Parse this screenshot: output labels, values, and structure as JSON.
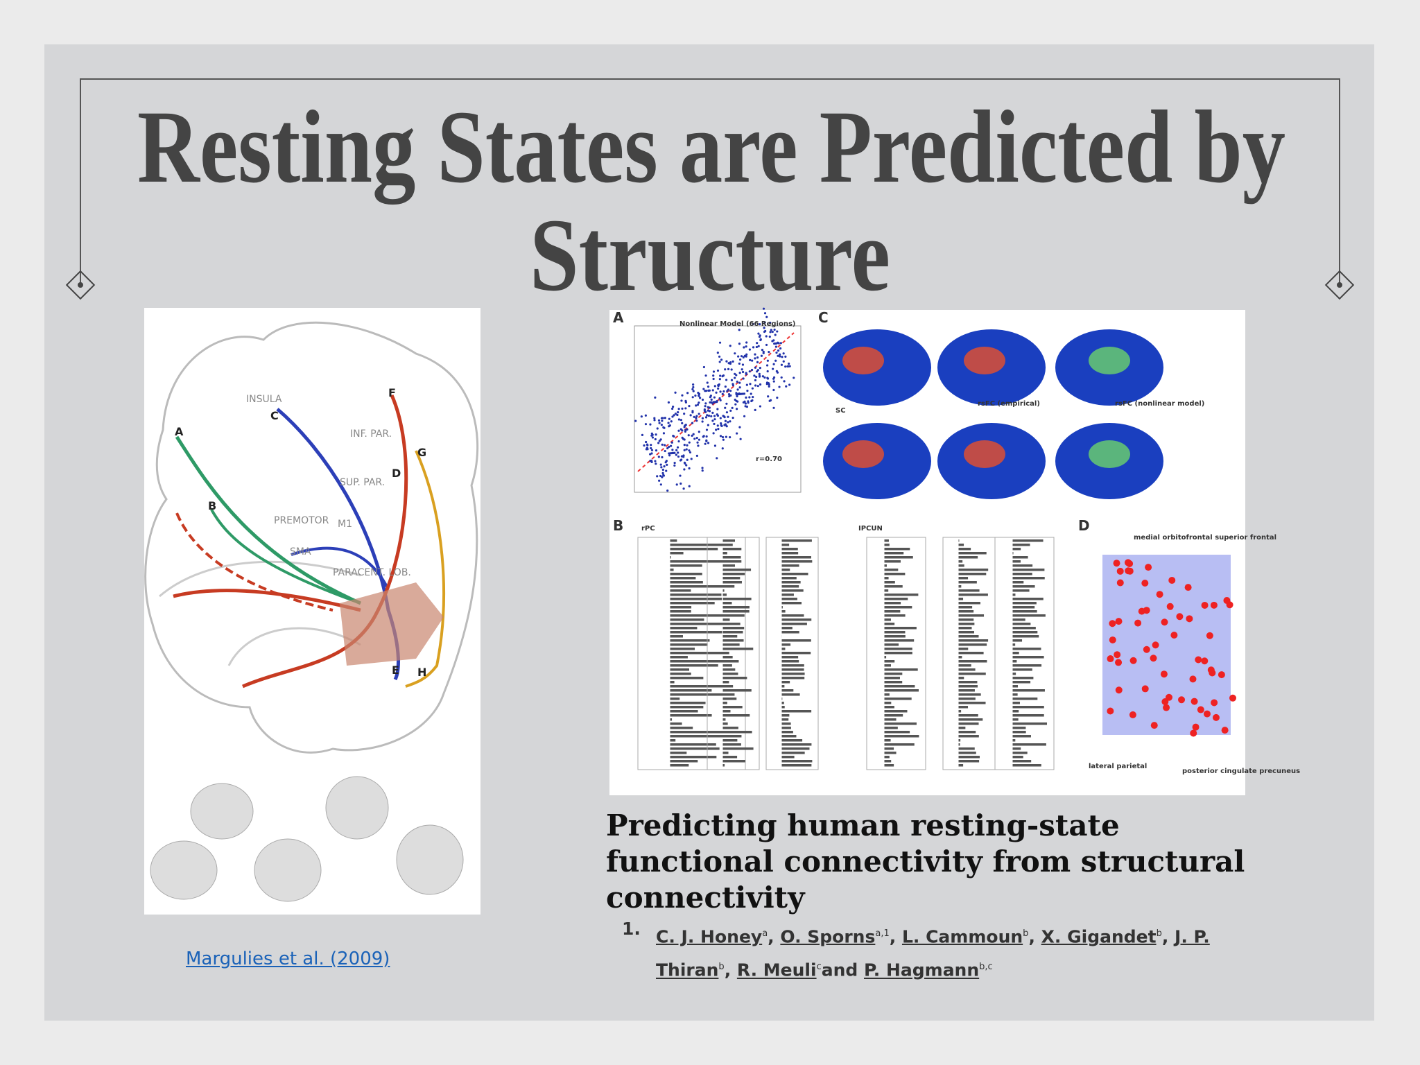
{
  "slide": {
    "title": {
      "line1": "Resting States are Predicted by",
      "line2": "Structure"
    },
    "left_figure": {
      "labels": [
        "INSULA",
        "INF. PAR.",
        "SUP. PAR.",
        "PREMOTOR",
        "M1",
        "SMA",
        "PARACENT. LOB."
      ],
      "letters": [
        "A",
        "B",
        "C",
        "D",
        "E",
        "F",
        "G",
        "H"
      ]
    },
    "right_figure": {
      "panels": [
        "A",
        "B",
        "C",
        "D"
      ],
      "scatter_title": "Nonlinear Model (66 Regions)",
      "scatter_r": "r=0.70",
      "bar_titles": [
        "rPC",
        "IPCUN"
      ],
      "brain_labels": [
        "SC",
        "rsFC (empirical)",
        "rsFC (nonlinear model)"
      ],
      "network_labels": [
        "medial orbitofrontal superior frontal",
        "lateral parietal",
        "posterior cingulate precuneus"
      ]
    },
    "citation": "Margulies et al. (2009)",
    "article": {
      "title_lines": [
        "Predicting human resting-state",
        "functional connectivity from structural",
        "connectivity"
      ],
      "list_number": "1.",
      "authors": [
        {
          "name": "C. J. Honey",
          "sup": "a",
          "sep": ", "
        },
        {
          "name": "O. Sporns",
          "sup": "a,1",
          "sep": ", "
        },
        {
          "name": "L. Cammoun",
          "sup": "b",
          "sep": ", "
        },
        {
          "name": "X. Gigandet",
          "sup": "b",
          "sep": ", "
        },
        {
          "name": "J. P. Thiran",
          "sup": "b",
          "sep": ", "
        },
        {
          "name": "R. Meuli",
          "sup": "c",
          "sep": "and "
        },
        {
          "name": "P. Hagmann",
          "sup": "b,c",
          "sep": ""
        }
      ]
    }
  }
}
